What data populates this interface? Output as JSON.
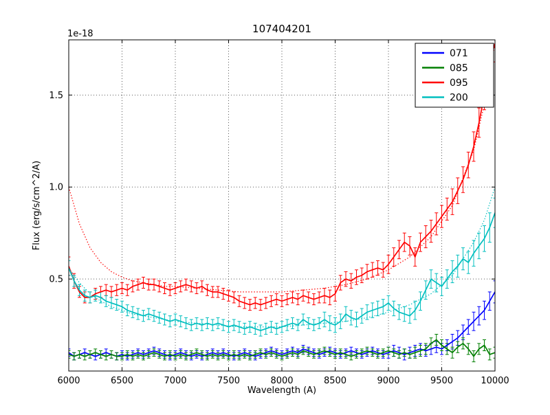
{
  "chart_data": {
    "type": "line",
    "title": "107404201",
    "xlabel": "Wavelength (A)",
    "ylabel": "Flux (erg/s/cm^2/A)",
    "y_offset_text": "1e-18",
    "xlim": [
      6000,
      10000
    ],
    "ylim": [
      0,
      1.8
    ],
    "xticks": [
      6000,
      6500,
      7000,
      7500,
      8000,
      8500,
      9000,
      9500,
      10000
    ],
    "xtick_labels": [
      "6000",
      "6500",
      "7000",
      "7500",
      "8000",
      "8500",
      "9000",
      "9500",
      "10000"
    ],
    "yticks": [
      0.5,
      1.0,
      1.5
    ],
    "ytick_labels": [
      "0.5",
      "1.0",
      "1.5"
    ],
    "grid": true,
    "legend_position": "upper right",
    "x": [
      6000,
      6050,
      6100,
      6150,
      6200,
      6250,
      6300,
      6350,
      6400,
      6450,
      6500,
      6550,
      6600,
      6650,
      6700,
      6750,
      6800,
      6850,
      6900,
      6950,
      7000,
      7050,
      7100,
      7150,
      7200,
      7250,
      7300,
      7350,
      7400,
      7450,
      7500,
      7550,
      7600,
      7650,
      7700,
      7750,
      7800,
      7850,
      7900,
      7950,
      8000,
      8050,
      8100,
      8150,
      8200,
      8250,
      8300,
      8350,
      8400,
      8450,
      8500,
      8550,
      8600,
      8650,
      8700,
      8750,
      8800,
      8850,
      8900,
      8950,
      9000,
      9050,
      9100,
      9150,
      9200,
      9250,
      9300,
      9350,
      9400,
      9450,
      9500,
      9550,
      9600,
      9650,
      9700,
      9750,
      9800,
      9850,
      9900,
      9950,
      10000
    ],
    "series": [
      {
        "name": "071",
        "color": "#0000ff",
        "values": [
          0.1,
          0.08,
          0.09,
          0.1,
          0.09,
          0.08,
          0.09,
          0.1,
          0.09,
          0.08,
          0.09,
          0.08,
          0.09,
          0.1,
          0.09,
          0.1,
          0.11,
          0.1,
          0.09,
          0.08,
          0.09,
          0.1,
          0.09,
          0.08,
          0.09,
          0.08,
          0.09,
          0.1,
          0.09,
          0.1,
          0.09,
          0.08,
          0.09,
          0.1,
          0.09,
          0.08,
          0.09,
          0.1,
          0.11,
          0.1,
          0.09,
          0.1,
          0.11,
          0.1,
          0.12,
          0.11,
          0.1,
          0.09,
          0.1,
          0.11,
          0.1,
          0.09,
          0.1,
          0.11,
          0.1,
          0.09,
          0.1,
          0.11,
          0.1,
          0.09,
          0.1,
          0.11,
          0.1,
          0.09,
          0.1,
          0.11,
          0.12,
          0.11,
          0.12,
          0.13,
          0.12,
          0.14,
          0.16,
          0.18,
          0.21,
          0.24,
          0.27,
          0.3,
          0.33,
          0.38,
          0.43
        ],
        "err": [
          0.02,
          0.02,
          0.02,
          0.02,
          0.02,
          0.02,
          0.02,
          0.02,
          0.02,
          0.02,
          0.02,
          0.02,
          0.02,
          0.02,
          0.02,
          0.02,
          0.02,
          0.02,
          0.02,
          0.02,
          0.02,
          0.02,
          0.02,
          0.02,
          0.02,
          0.02,
          0.02,
          0.02,
          0.02,
          0.02,
          0.02,
          0.02,
          0.02,
          0.02,
          0.02,
          0.02,
          0.02,
          0.02,
          0.02,
          0.02,
          0.02,
          0.02,
          0.02,
          0.02,
          0.02,
          0.02,
          0.02,
          0.02,
          0.02,
          0.02,
          0.02,
          0.02,
          0.02,
          0.02,
          0.02,
          0.02,
          0.02,
          0.02,
          0.02,
          0.02,
          0.03,
          0.03,
          0.03,
          0.03,
          0.03,
          0.03,
          0.03,
          0.03,
          0.03,
          0.03,
          0.03,
          0.03,
          0.04,
          0.04,
          0.04,
          0.04,
          0.05,
          0.05,
          0.05,
          0.05,
          0.06
        ]
      },
      {
        "name": "085",
        "color": "#007f00",
        "values": [
          0.09,
          0.08,
          0.09,
          0.08,
          0.09,
          0.1,
          0.09,
          0.08,
          0.09,
          0.08,
          0.08,
          0.09,
          0.08,
          0.09,
          0.08,
          0.09,
          0.1,
          0.09,
          0.08,
          0.09,
          0.08,
          0.09,
          0.08,
          0.09,
          0.1,
          0.09,
          0.08,
          0.09,
          0.08,
          0.09,
          0.08,
          0.09,
          0.08,
          0.09,
          0.08,
          0.09,
          0.1,
          0.09,
          0.1,
          0.09,
          0.08,
          0.09,
          0.1,
          0.09,
          0.11,
          0.1,
          0.09,
          0.1,
          0.11,
          0.1,
          0.09,
          0.1,
          0.09,
          0.08,
          0.09,
          0.1,
          0.11,
          0.1,
          0.09,
          0.1,
          0.11,
          0.1,
          0.09,
          0.1,
          0.09,
          0.1,
          0.11,
          0.12,
          0.15,
          0.17,
          0.14,
          0.12,
          0.1,
          0.13,
          0.15,
          0.12,
          0.08,
          0.12,
          0.14,
          0.09,
          0.1
        ],
        "err": [
          0.02,
          0.02,
          0.02,
          0.02,
          0.02,
          0.02,
          0.02,
          0.02,
          0.02,
          0.02,
          0.02,
          0.02,
          0.02,
          0.02,
          0.02,
          0.02,
          0.02,
          0.02,
          0.02,
          0.02,
          0.02,
          0.02,
          0.02,
          0.02,
          0.02,
          0.02,
          0.02,
          0.02,
          0.02,
          0.02,
          0.02,
          0.02,
          0.02,
          0.02,
          0.02,
          0.02,
          0.02,
          0.02,
          0.02,
          0.02,
          0.02,
          0.02,
          0.02,
          0.02,
          0.02,
          0.02,
          0.02,
          0.02,
          0.02,
          0.02,
          0.02,
          0.02,
          0.02,
          0.02,
          0.02,
          0.02,
          0.02,
          0.02,
          0.02,
          0.02,
          0.02,
          0.02,
          0.02,
          0.02,
          0.02,
          0.03,
          0.03,
          0.03,
          0.03,
          0.03,
          0.03,
          0.03,
          0.03,
          0.03,
          0.03,
          0.03,
          0.03,
          0.03,
          0.03,
          0.03,
          0.03
        ]
      },
      {
        "name": "095",
        "color": "#ff0000",
        "values": [
          0.57,
          0.49,
          0.43,
          0.4,
          0.4,
          0.42,
          0.43,
          0.44,
          0.43,
          0.44,
          0.45,
          0.44,
          0.46,
          0.47,
          0.48,
          0.47,
          0.47,
          0.46,
          0.45,
          0.44,
          0.45,
          0.46,
          0.47,
          0.46,
          0.45,
          0.46,
          0.44,
          0.43,
          0.43,
          0.42,
          0.41,
          0.4,
          0.38,
          0.37,
          0.36,
          0.37,
          0.36,
          0.37,
          0.38,
          0.39,
          0.38,
          0.39,
          0.4,
          0.39,
          0.41,
          0.4,
          0.39,
          0.4,
          0.41,
          0.4,
          0.42,
          0.48,
          0.5,
          0.49,
          0.51,
          0.52,
          0.54,
          0.55,
          0.56,
          0.55,
          0.58,
          0.62,
          0.66,
          0.7,
          0.68,
          0.62,
          0.7,
          0.73,
          0.76,
          0.8,
          0.84,
          0.88,
          0.92,
          0.98,
          1.04,
          1.12,
          1.22,
          1.35,
          1.5,
          1.68,
          1.78
        ],
        "err": [
          0.05,
          0.04,
          0.03,
          0.03,
          0.03,
          0.03,
          0.03,
          0.03,
          0.03,
          0.03,
          0.03,
          0.03,
          0.03,
          0.03,
          0.03,
          0.03,
          0.03,
          0.03,
          0.03,
          0.03,
          0.03,
          0.03,
          0.03,
          0.03,
          0.03,
          0.03,
          0.03,
          0.03,
          0.03,
          0.03,
          0.03,
          0.03,
          0.03,
          0.03,
          0.03,
          0.03,
          0.03,
          0.03,
          0.03,
          0.03,
          0.03,
          0.03,
          0.03,
          0.03,
          0.03,
          0.03,
          0.03,
          0.03,
          0.04,
          0.04,
          0.04,
          0.04,
          0.04,
          0.04,
          0.04,
          0.04,
          0.04,
          0.04,
          0.04,
          0.04,
          0.05,
          0.05,
          0.05,
          0.05,
          0.05,
          0.05,
          0.05,
          0.06,
          0.06,
          0.06,
          0.06,
          0.06,
          0.07,
          0.07,
          0.07,
          0.07,
          0.08,
          0.08,
          0.08,
          0.09,
          0.1
        ]
      },
      {
        "name": "200",
        "color": "#00bfbf",
        "values": [
          0.56,
          0.49,
          0.44,
          0.41,
          0.4,
          0.41,
          0.4,
          0.38,
          0.37,
          0.36,
          0.35,
          0.33,
          0.32,
          0.31,
          0.3,
          0.31,
          0.3,
          0.29,
          0.28,
          0.27,
          0.28,
          0.27,
          0.26,
          0.25,
          0.26,
          0.25,
          0.26,
          0.25,
          0.26,
          0.25,
          0.24,
          0.25,
          0.24,
          0.23,
          0.24,
          0.23,
          0.22,
          0.23,
          0.24,
          0.23,
          0.24,
          0.25,
          0.26,
          0.25,
          0.28,
          0.26,
          0.25,
          0.26,
          0.28,
          0.26,
          0.25,
          0.27,
          0.31,
          0.29,
          0.28,
          0.3,
          0.32,
          0.33,
          0.34,
          0.35,
          0.37,
          0.34,
          0.32,
          0.31,
          0.3,
          0.33,
          0.38,
          0.44,
          0.5,
          0.48,
          0.46,
          0.5,
          0.54,
          0.57,
          0.61,
          0.59,
          0.64,
          0.68,
          0.72,
          0.78,
          0.86
        ],
        "err": [
          0.04,
          0.03,
          0.03,
          0.03,
          0.03,
          0.03,
          0.03,
          0.03,
          0.03,
          0.03,
          0.03,
          0.03,
          0.03,
          0.03,
          0.03,
          0.03,
          0.03,
          0.03,
          0.03,
          0.03,
          0.03,
          0.03,
          0.03,
          0.03,
          0.03,
          0.03,
          0.03,
          0.03,
          0.03,
          0.03,
          0.03,
          0.03,
          0.03,
          0.03,
          0.03,
          0.03,
          0.03,
          0.03,
          0.03,
          0.03,
          0.03,
          0.03,
          0.03,
          0.03,
          0.03,
          0.03,
          0.03,
          0.03,
          0.04,
          0.04,
          0.04,
          0.04,
          0.04,
          0.04,
          0.04,
          0.04,
          0.04,
          0.04,
          0.04,
          0.04,
          0.04,
          0.04,
          0.04,
          0.04,
          0.04,
          0.05,
          0.05,
          0.05,
          0.05,
          0.05,
          0.05,
          0.05,
          0.06,
          0.06,
          0.06,
          0.06,
          0.07,
          0.07,
          0.07,
          0.08,
          0.08
        ]
      }
    ],
    "model_curves": [
      {
        "for": "095",
        "color": "#ff0000",
        "style": "dotted",
        "x": [
          6000,
          6100,
          6200,
          6300,
          6400,
          6500,
          6600,
          6700,
          6800,
          6900,
          7000,
          7200,
          7400,
          7600,
          7800,
          8000,
          8200,
          8400,
          8600,
          8800,
          9000,
          9200,
          9400,
          9600,
          9800,
          9900,
          10000
        ],
        "values": [
          1.0,
          0.8,
          0.67,
          0.59,
          0.54,
          0.51,
          0.49,
          0.48,
          0.47,
          0.46,
          0.46,
          0.45,
          0.44,
          0.43,
          0.43,
          0.43,
          0.44,
          0.45,
          0.47,
          0.5,
          0.55,
          0.62,
          0.73,
          0.9,
          1.2,
          1.45,
          1.78
        ]
      },
      {
        "for": "200",
        "color": "#00bfbf",
        "style": "dotted",
        "x": [
          6000,
          6100,
          6200,
          6300,
          6400,
          6500,
          6600,
          6700,
          6800,
          6900,
          7000,
          7200,
          7400,
          7600,
          7800,
          8000,
          8200,
          8400,
          8600,
          8800,
          9000,
          9200,
          9400,
          9600,
          9800,
          9900,
          10000
        ],
        "values": [
          0.56,
          0.48,
          0.42,
          0.38,
          0.35,
          0.33,
          0.31,
          0.3,
          0.29,
          0.28,
          0.27,
          0.26,
          0.25,
          0.24,
          0.24,
          0.24,
          0.25,
          0.26,
          0.27,
          0.29,
          0.32,
          0.36,
          0.42,
          0.52,
          0.7,
          0.82,
          1.0
        ]
      }
    ],
    "legend": [
      "071",
      "085",
      "095",
      "200"
    ]
  }
}
